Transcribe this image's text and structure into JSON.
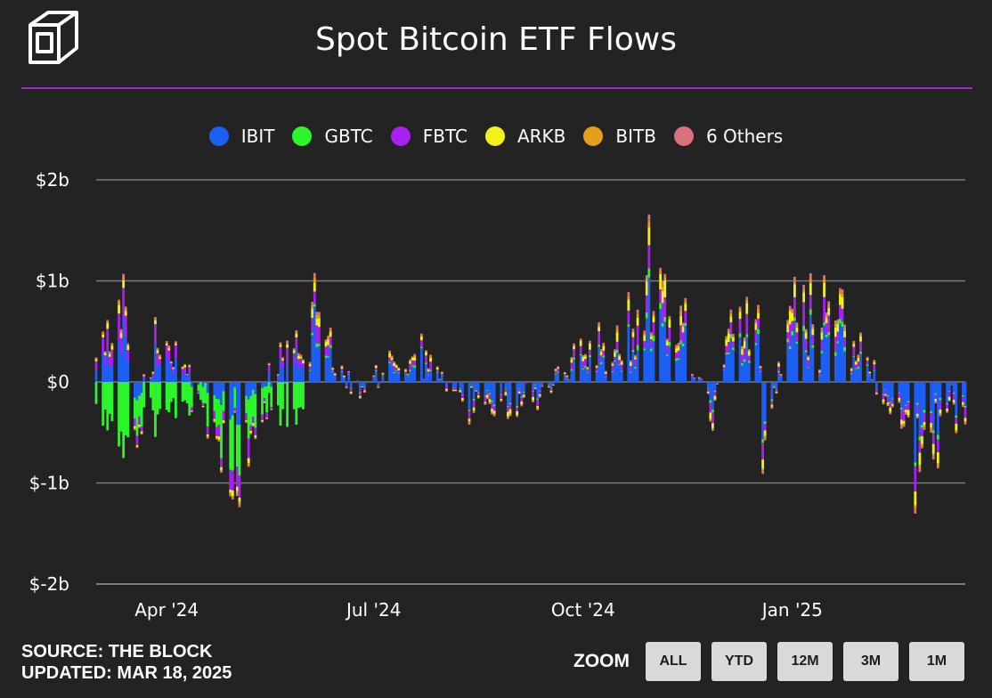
{
  "header": {
    "title": "Spot Bitcoin ETF Flows"
  },
  "footer": {
    "source": "SOURCE: THE BLOCK",
    "updated": "UPDATED: MAR 18, 2025",
    "zoom_label": "ZOOM",
    "zoom_buttons": [
      "ALL",
      "YTD",
      "12M",
      "3M",
      "1M"
    ]
  },
  "colors": {
    "background": "#232323",
    "divider": "#9d2bd6",
    "grid": "#7a7a7a",
    "IBIT": "#1d5ff5",
    "GBTC": "#2cf52c",
    "FBTC": "#a91ff0",
    "ARKB": "#f2f21a",
    "BITB": "#e3a01b",
    "6 Others": "#d9707a"
  },
  "chart_data": {
    "type": "bar",
    "stacked": true,
    "title": "Spot Bitcoin ETF Flows",
    "ylabel": "",
    "xlabel": "",
    "ylim": [
      -2000000000,
      2000000000
    ],
    "y_ticks": [
      {
        "value": 2000000000,
        "label": "$2b"
      },
      {
        "value": 1000000000,
        "label": "$1b"
      },
      {
        "value": 0,
        "label": "$0"
      },
      {
        "value": -1000000000,
        "label": "$-1b"
      },
      {
        "value": -2000000000,
        "label": "$-2b"
      }
    ],
    "x_range": [
      "2024-03-01",
      "2025-03-18"
    ],
    "x_ticks": [
      {
        "date": "2024-04-01",
        "label": "Apr '24"
      },
      {
        "date": "2024-07-01",
        "label": "Jul '24"
      },
      {
        "date": "2024-10-01",
        "label": "Oct '24"
      },
      {
        "date": "2025-01-01",
        "label": "Jan '25"
      }
    ],
    "legend_position": "top-center",
    "grid": true,
    "series_names": [
      "IBIT",
      "GBTC",
      "FBTC",
      "ARKB",
      "BITB",
      "6 Others"
    ],
    "approx_daily_net": [
      {
        "date": "2024-03-01",
        "net": 0.5
      },
      {
        "date": "2024-03-08",
        "net": 0.4
      },
      {
        "date": "2024-03-12",
        "net": 1.05
      },
      {
        "date": "2024-03-19",
        "net": -0.35
      },
      {
        "date": "2024-03-26",
        "net": 0.4
      },
      {
        "date": "2024-04-12",
        "net": 0.05
      },
      {
        "date": "2024-05-01",
        "net": -0.55
      },
      {
        "date": "2024-06-05",
        "net": 0.85
      },
      {
        "date": "2024-06-21",
        "net": -0.1
      },
      {
        "date": "2024-07-22",
        "net": 0.45
      },
      {
        "date": "2024-08-05",
        "net": -0.15
      },
      {
        "date": "2024-09-03",
        "net": -0.3
      },
      {
        "date": "2024-10-14",
        "net": 0.55
      },
      {
        "date": "2024-11-07",
        "net": 1.35
      },
      {
        "date": "2024-11-13",
        "net": 0.95
      },
      {
        "date": "2024-11-26",
        "net": -0.45
      },
      {
        "date": "2024-12-05",
        "net": 0.75
      },
      {
        "date": "2024-12-17",
        "net": 0.6
      },
      {
        "date": "2024-12-19",
        "net": -0.65
      },
      {
        "date": "2025-01-02",
        "net": 0.9
      },
      {
        "date": "2025-01-21",
        "net": 1.05
      },
      {
        "date": "2025-02-12",
        "net": -0.25
      },
      {
        "date": "2025-02-25",
        "net": -1.0
      },
      {
        "date": "2025-03-10",
        "net": -0.35
      }
    ]
  }
}
